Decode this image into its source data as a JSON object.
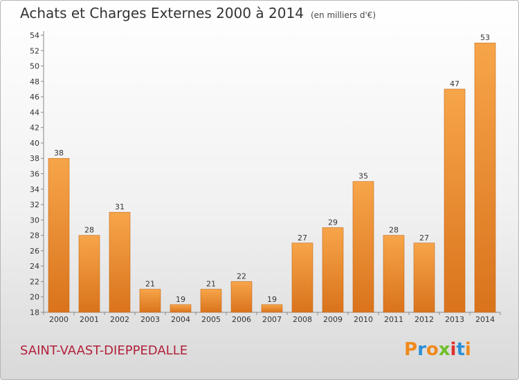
{
  "header": {
    "title": "Achats et Charges Externes 2000 à 2014",
    "unit": "(en milliers d'€)"
  },
  "footer": {
    "commune": "SAINT-VAAST-DIEPPEDALLE",
    "logo_text": "Proxiti"
  },
  "colors": {
    "bar_top": "#f7a54a",
    "bar_bottom": "#d9731c",
    "commune": "#b0213a",
    "logo": [
      "#f08a1c",
      "#2a8fd6",
      "#f08a1c",
      "#6fbf2a",
      "#e0312e",
      "#2a8fd6",
      "#f08a1c"
    ]
  },
  "chart_data": {
    "type": "bar",
    "title": "Achats et Charges Externes 2000 à 2014",
    "subtitle": "(en milliers d'€)",
    "categories": [
      "2000",
      "2001",
      "2002",
      "2003",
      "2004",
      "2005",
      "2006",
      "2007",
      "2008",
      "2009",
      "2010",
      "2011",
      "2012",
      "2013",
      "2014"
    ],
    "values": [
      38,
      28,
      31,
      21,
      19,
      21,
      22,
      19,
      27,
      29,
      35,
      28,
      27,
      47,
      53
    ],
    "ylim": [
      18,
      54
    ],
    "yticks": [
      18,
      20,
      22,
      24,
      26,
      28,
      30,
      32,
      34,
      36,
      38,
      40,
      42,
      44,
      46,
      48,
      50,
      52,
      54
    ],
    "grid": false,
    "legend": "none"
  }
}
